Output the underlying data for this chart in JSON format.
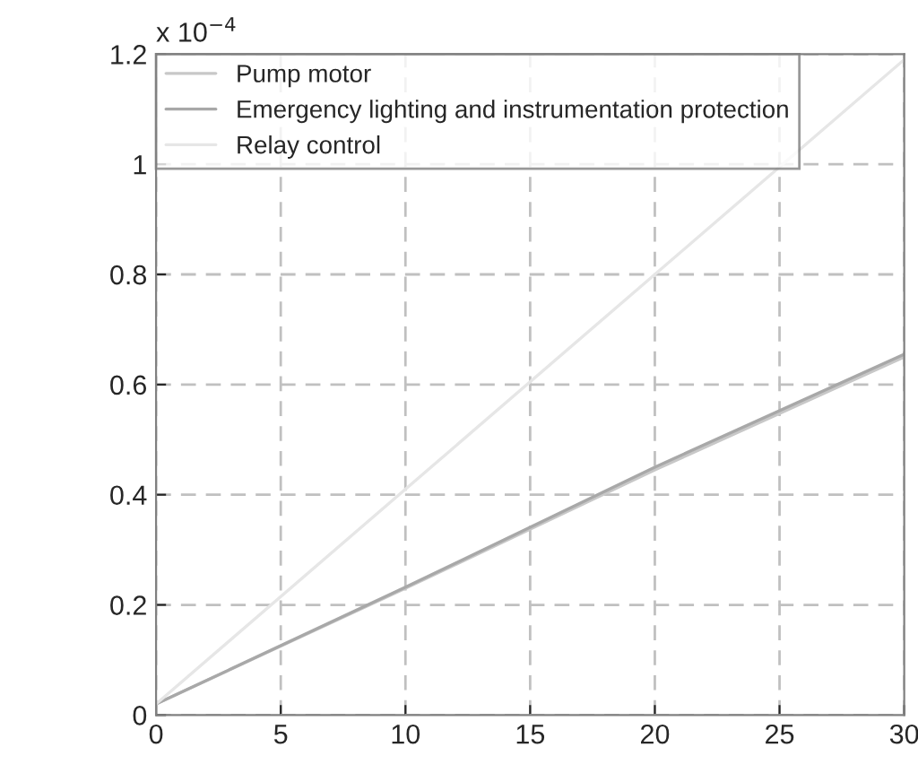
{
  "chart_data": {
    "type": "line",
    "annotations": [
      "x 10$^{−4}$"
    ],
    "series": [
      {
        "name": "Pump motor",
        "color": "#c8c8c8",
        "x": [
          0,
          10,
          20,
          30
        ],
        "values": [
          0.02,
          0.23,
          0.445,
          0.65
        ]
      },
      {
        "name": "Emergency lighting and instrumentation protection",
        "color": "#a8a8a8",
        "x": [
          0,
          10,
          20,
          30
        ],
        "values": [
          0.02,
          0.232,
          0.45,
          0.655
        ]
      },
      {
        "name": "Relay control",
        "color": "#e6e6e6",
        "x": [
          0,
          10,
          20,
          30
        ],
        "values": [
          0.02,
          0.41,
          0.8,
          1.19
        ]
      }
    ],
    "xlim": [
      0,
      30
    ],
    "xticks": [
      0,
      5,
      10,
      15,
      20,
      25,
      30
    ],
    "ylim": [
      0,
      1.2
    ],
    "yticks": [
      0,
      0.2,
      0.4,
      0.6,
      0.8,
      1,
      1.2
    ],
    "grid": true,
    "legend": "top left",
    "line_style": "solid",
    "marker": "none"
  }
}
